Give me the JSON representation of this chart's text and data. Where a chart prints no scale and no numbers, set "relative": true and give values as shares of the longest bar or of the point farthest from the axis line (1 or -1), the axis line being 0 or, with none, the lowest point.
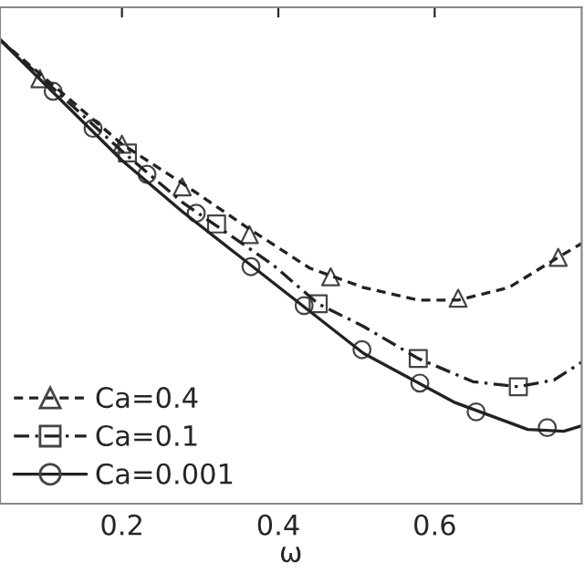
{
  "chart_data": {
    "type": "line",
    "xlabel": "ω",
    "relative": true,
    "xlim": [
      0.044,
      0.788
    ],
    "xticks": [
      0.2,
      0.4,
      0.6
    ],
    "legend": "bottom left",
    "grid": false,
    "series": [
      {
        "line_style": "dashed",
        "color": "#222222",
        "x": [
          0.044,
          0.2,
          0.277,
          0.363,
          0.44,
          0.509,
          0.579,
          0.63,
          0.695,
          0.758,
          0.788
        ],
        "values": [
          1.0,
          0.775,
          0.691,
          0.592,
          0.508,
          0.466,
          0.439,
          0.439,
          0.466,
          0.531,
          0.561
        ]
      },
      {
        "line_style": "dashdot",
        "color": "#222222",
        "x": [
          0.044,
          0.2,
          0.277,
          0.393,
          0.451,
          0.509,
          0.579,
          0.649,
          0.707,
          0.753,
          0.788
        ],
        "values": [
          1.0,
          0.76,
          0.65,
          0.515,
          0.431,
          0.382,
          0.313,
          0.263,
          0.252,
          0.267,
          0.305
        ]
      },
      {
        "line_style": "solid",
        "color": "#222222",
        "x": [
          0.044,
          0.2,
          0.277,
          0.393,
          0.509,
          0.626,
          0.719,
          0.765,
          0.788
        ],
        "values": [
          1.0,
          0.74,
          0.63,
          0.477,
          0.324,
          0.218,
          0.16,
          0.156,
          0.168
        ]
      },
      {
        "type": "scatter",
        "name": "Ca=0.4",
        "marker": "triangle",
        "color": "#444444",
        "x": [
          0.095,
          0.2,
          0.277,
          0.363,
          0.467,
          0.63,
          0.758
        ],
        "values": [
          0.916,
          0.775,
          0.683,
          0.58,
          0.489,
          0.443,
          0.531
        ]
      },
      {
        "type": "scatter",
        "name": "Ca=0.1",
        "marker": "square",
        "color": "#444444",
        "x": [
          0.207,
          0.321,
          0.451,
          0.579,
          0.707
        ],
        "values": [
          0.756,
          0.603,
          0.431,
          0.313,
          0.252
        ]
      },
      {
        "type": "scatter",
        "name": "Ca=0.001",
        "marker": "circle",
        "color": "#444444",
        "x": [
          0.112,
          0.163,
          0.232,
          0.295,
          0.365,
          0.433,
          0.507,
          0.581,
          0.653,
          0.744
        ],
        "values": [
          0.889,
          0.809,
          0.71,
          0.626,
          0.511,
          0.427,
          0.332,
          0.26,
          0.198,
          0.164
        ]
      }
    ]
  }
}
